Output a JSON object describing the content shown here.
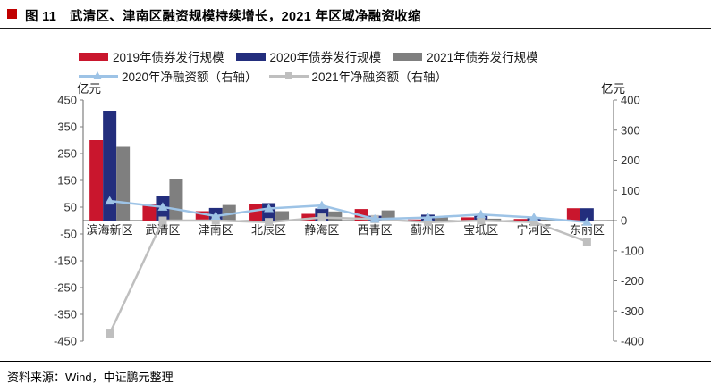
{
  "header": {
    "title": "图 11　武清区、津南区融资规模持续增长，2021 年区域净融资收缩",
    "bullet_color": "#C00000"
  },
  "footer": {
    "source": "资料来源：Wind，中证鹏元整理"
  },
  "chart_data": {
    "type": "bar",
    "subtype": "grouped-bars-with-lines-dual-axis",
    "categories": [
      "滨海新区",
      "武清区",
      "津南区",
      "北辰区",
      "静海区",
      "西青区",
      "蓟州区",
      "宝坻区",
      "宁河区",
      "东丽区"
    ],
    "series": [
      {
        "name": "2019年债券发行规模",
        "type": "bar",
        "axis": "left",
        "color": "#C9162D",
        "values": [
          300,
          60,
          35,
          63,
          25,
          43,
          4,
          12,
          6,
          46
        ]
      },
      {
        "name": "2020年债券发行规模",
        "type": "bar",
        "axis": "left",
        "color": "#232E7D",
        "values": [
          410,
          90,
          47,
          65,
          45,
          18,
          22,
          20,
          12,
          46
        ]
      },
      {
        "name": "2021年债券发行规模",
        "type": "bar",
        "axis": "left",
        "color": "#7F7F7F",
        "values": [
          275,
          155,
          58,
          35,
          34,
          38,
          16,
          7,
          4,
          2
        ]
      },
      {
        "name": "2020年净融资额（右轴）",
        "type": "line",
        "axis": "right",
        "color": "#9DC3E6",
        "marker": "triangle",
        "values": [
          65,
          45,
          15,
          40,
          50,
          5,
          10,
          20,
          10,
          -5
        ]
      },
      {
        "name": "2021年净融资额（右轴）",
        "type": "line",
        "axis": "right",
        "color": "#BFBFBF",
        "marker": "square",
        "values": [
          -375,
          0,
          0,
          -5,
          10,
          5,
          -5,
          0,
          -5,
          -70
        ]
      }
    ],
    "left_axis": {
      "label": "亿元",
      "min": -450,
      "max": 450,
      "step": 100
    },
    "right_axis": {
      "label": "亿元",
      "min": -400,
      "max": 400,
      "step": 100
    },
    "legend_position": "top",
    "grid": "off"
  }
}
